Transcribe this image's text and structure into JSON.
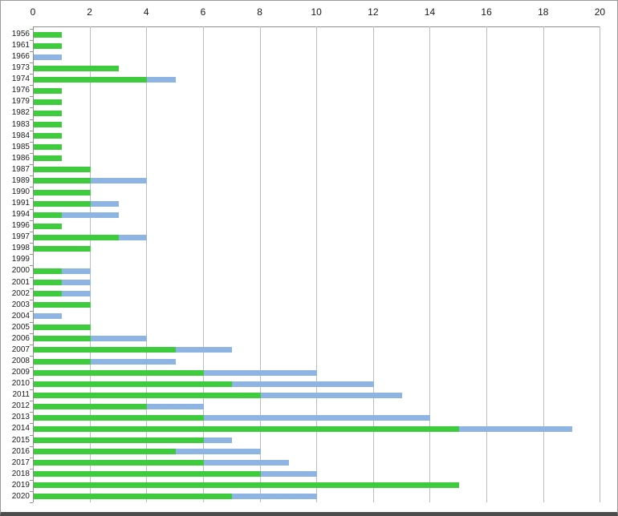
{
  "page": {
    "background_color": "#FFFFFF",
    "border_color": "#9B9B9B",
    "bottom_edge_color": "#4C4C4C"
  },
  "chart_data": {
    "type": "bar",
    "orientation": "horizontal",
    "stacked": true,
    "title": "",
    "xlabel": "",
    "ylabel": "",
    "grid": true,
    "legend": "none",
    "x_axis": {
      "position": "top",
      "min": 0,
      "max": 20,
      "step": 2,
      "tick_labels": [
        "0",
        "2",
        "4",
        "6",
        "8",
        "10",
        "12",
        "14",
        "16",
        "18",
        "20"
      ]
    },
    "categories": [
      "1956",
      "1961",
      "1966",
      "1973",
      "1974",
      "1976",
      "1979",
      "1982",
      "1983",
      "1984",
      "1985",
      "1986",
      "1987",
      "1989",
      "1990",
      "1991",
      "1994",
      "1996",
      "1997",
      "1998",
      "1999",
      "2000",
      "2001",
      "2002",
      "2003",
      "2004",
      "2005",
      "2006",
      "2007",
      "2008",
      "2009",
      "2010",
      "2011",
      "2012",
      "2013",
      "2014",
      "2015",
      "2016",
      "2017",
      "2018",
      "2019",
      "2020"
    ],
    "series": [
      {
        "name": "green",
        "color": "#3ECC3E",
        "values": [
          1,
          1,
          0,
          3,
          4,
          1,
          1,
          1,
          1,
          1,
          1,
          1,
          2,
          2,
          2,
          2,
          1,
          1,
          3,
          2,
          0,
          1,
          1,
          1,
          2,
          0,
          2,
          2,
          5,
          2,
          6,
          7,
          8,
          4,
          6,
          15,
          6,
          5,
          6,
          8,
          15,
          7
        ]
      },
      {
        "name": "blue",
        "color": "#8EB4E3",
        "values": [
          0,
          0,
          1,
          0,
          1,
          0,
          0,
          0,
          0,
          0,
          0,
          0,
          0,
          2,
          0,
          1,
          2,
          0,
          1,
          0,
          0,
          1,
          1,
          1,
          0,
          1,
          0,
          2,
          2,
          3,
          4,
          5,
          5,
          2,
          8,
          4,
          1,
          3,
          3,
          2,
          0,
          3
        ]
      }
    ],
    "colors": {
      "gridline": "#BDBDBD",
      "axis_line": "#8F8F8F",
      "tick_text": "#1A1A1A"
    }
  }
}
